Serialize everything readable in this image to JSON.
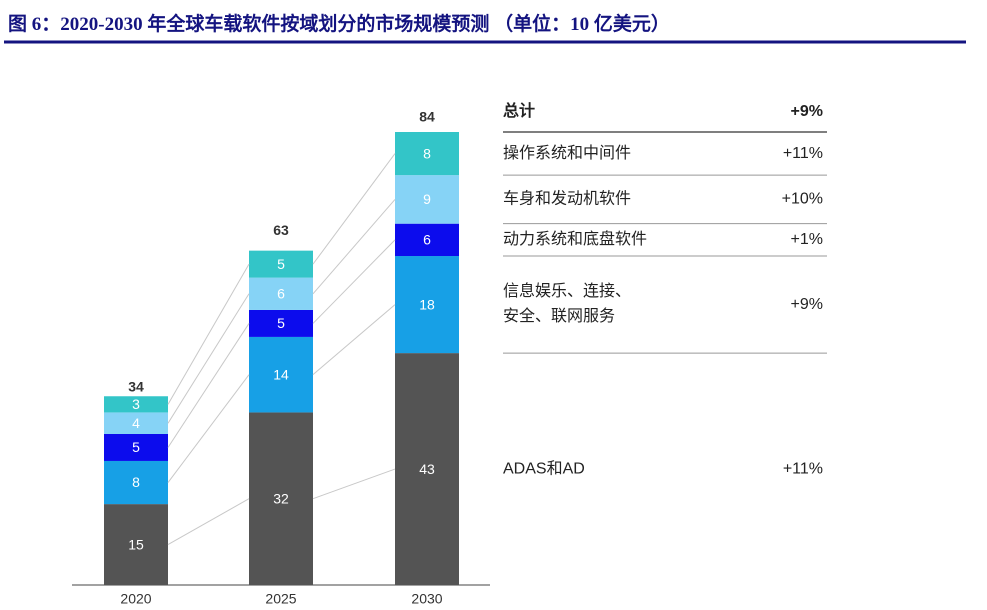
{
  "chart_data": {
    "type": "stacked-bar",
    "title": "图 6：2020-2030 年全球车载软件按域划分的市场规模预测 （单位：10 亿美元）",
    "categories": [
      "2020",
      "2025",
      "2030"
    ],
    "totals": [
      34,
      63,
      84
    ],
    "total_name": "总计",
    "total_growth": "+9%",
    "series": [
      {
        "name": "ADAS和AD",
        "color": "#545454",
        "values": [
          15,
          32,
          43
        ],
        "growth": "+11%"
      },
      {
        "name": "信息娱乐、连接、\n安全、联网服务",
        "color": "#17a0e6",
        "values": [
          8,
          14,
          18
        ],
        "growth": "+9%"
      },
      {
        "name": "动力系统和底盘软件",
        "color": "#0c0ced",
        "values": [
          5,
          5,
          6
        ],
        "growth": "+1%"
      },
      {
        "name": "车身和发动机软件",
        "color": "#86d3f6",
        "values": [
          4,
          6,
          9
        ],
        "growth": "+10%"
      },
      {
        "name": "操作系统和中间件",
        "color": "#33c5c8",
        "values": [
          3,
          5,
          8
        ],
        "growth": "+11%"
      }
    ]
  }
}
